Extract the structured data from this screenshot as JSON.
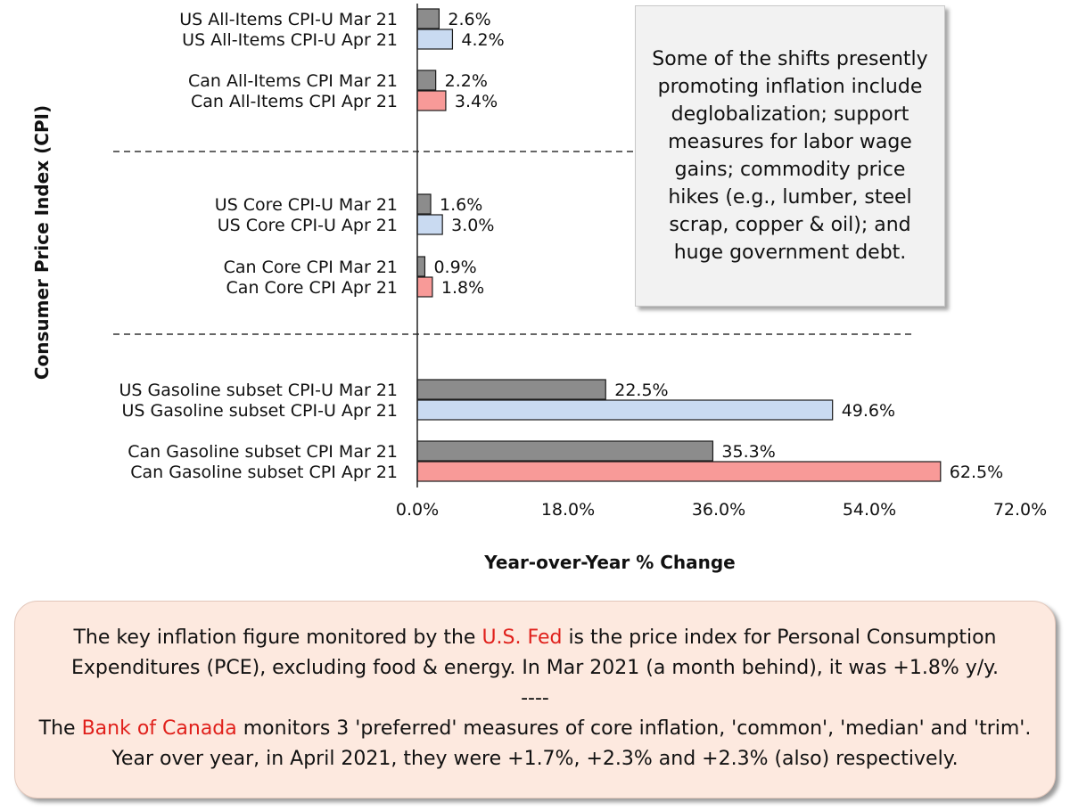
{
  "chart_data": {
    "type": "bar",
    "orientation": "horizontal",
    "categories": [
      "US All-Items CPI-U Mar 21",
      "US All-Items CPI-U Apr 21",
      "Can All-Items CPI Mar 21",
      "Can All-Items CPI Apr 21",
      "US Core CPI-U Mar 21",
      "US Core CPI-U Apr 21",
      "Can Core CPI Mar 21",
      "Can Core CPI Apr 21",
      "US Gasoline subset CPI-U Mar 21",
      "US Gasoline subset CPI-U Apr 21",
      "Can Gasoline subset CPI Mar 21",
      "Can Gasoline subset CPI Apr 21"
    ],
    "values": [
      2.6,
      4.2,
      2.2,
      3.4,
      1.6,
      3.0,
      0.9,
      1.8,
      22.5,
      49.6,
      35.3,
      62.5
    ],
    "value_labels": [
      "2.6%",
      "4.2%",
      "2.2%",
      "3.4%",
      "1.6%",
      "3.0%",
      "0.9%",
      "1.8%",
      "22.5%",
      "49.6%",
      "35.3%",
      "62.5%"
    ],
    "bar_colors": [
      "#8c8c8c",
      "#c9daf1",
      "#8c8c8c",
      "#f89a98",
      "#8c8c8c",
      "#c9daf1",
      "#8c8c8c",
      "#f89a98",
      "#8c8c8c",
      "#c9daf1",
      "#8c8c8c",
      "#f89a98"
    ],
    "xlim": [
      0,
      72
    ],
    "xticks": [
      0,
      18,
      36,
      54,
      72
    ],
    "xtick_labels": [
      "0.0%",
      "18.0%",
      "36.0%",
      "54.0%",
      "72.0%"
    ],
    "xlabel": "Year-over-Year % Change",
    "ylabel": "Consumer Price Index (CPI)",
    "grid": false
  },
  "annotation": {
    "text": "Some of the shifts presently promoting inflation include deglobalization; support measures for labor wage gains; commodity price hikes (e.g., lumber, steel scrap, copper & oil); and huge government debt."
  },
  "note": {
    "p1_before": "The key inflation figure monitored by the ",
    "p1_highlight": "U.S. Fed",
    "p1_after": " is the price index for Personal Consumption Expenditures (PCE), excluding food & energy. In Mar 2021 (a month behind), it was +1.8% y/y.",
    "separator": "----",
    "p2_before": "The ",
    "p2_highlight": "Bank of Canada",
    "p2_after": " monitors 3 'preferred' measures of core inflation, 'common', 'median' and 'trim'. Year over year, in April 2021, they were +1.7%, +2.3% and +2.3% (also) respectively."
  },
  "colors": {
    "highlight": "#e0201b",
    "note_background": "#fde9df",
    "annotation_background": "#f2f2f2"
  }
}
